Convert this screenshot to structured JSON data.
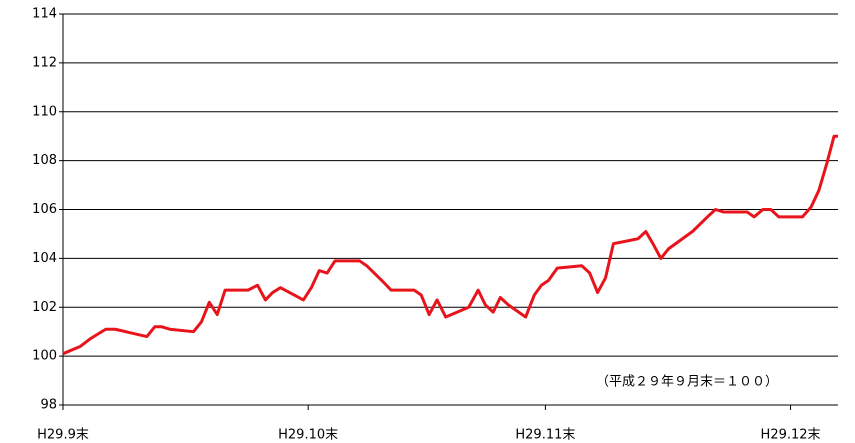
{
  "chart_data": {
    "type": "line",
    "annotation": "（平成２９年９月末＝１００）",
    "xlim": [
      0,
      98
    ],
    "xticks": [
      {
        "value": 0,
        "label": "H29.9末"
      },
      {
        "value": 31,
        "label": "H29.10末"
      },
      {
        "value": 61,
        "label": "H29.11末"
      },
      {
        "value": 92,
        "label": "H29.12末"
      }
    ],
    "ylim": [
      98,
      114
    ],
    "yticks": [
      98,
      100,
      102,
      104,
      106,
      108,
      110,
      112,
      114
    ],
    "grid": true,
    "series": [
      {
        "color": "#e8141b",
        "x": [
          0,
          2.2,
          3.4,
          4.4,
          5.4,
          6.6,
          10.6,
          11.6,
          12.5,
          13.5,
          16.5,
          17.5,
          18.5,
          19.5,
          20.5,
          23.4,
          24.6,
          25.6,
          26.5,
          27.5,
          30.4,
          31.4,
          32.4,
          33.4,
          34.4,
          37.5,
          38.4,
          40.3,
          41.5,
          44.4,
          45.3,
          46.3,
          47.3,
          48.4,
          51.3,
          52.5,
          53.4,
          54.4,
          55.3,
          56.3,
          58.5,
          59.6,
          60.5,
          61.4,
          62.5,
          65.6,
          66.6,
          67.6,
          68.6,
          69.6,
          72.7,
          73.7,
          74.6,
          75.6,
          76.6,
          79.6,
          81.5,
          82.5,
          83.5,
          86.5,
          87.4,
          88.5,
          89.5,
          90.5,
          93.5,
          94.6,
          95.6,
          96.6,
          97.5,
          98
        ],
        "values": [
          100.1,
          100.4,
          100.7,
          100.9,
          101.1,
          101.1,
          100.8,
          101.2,
          101.2,
          101.1,
          101.0,
          101.4,
          102.2,
          101.7,
          102.7,
          102.7,
          102.9,
          102.3,
          102.6,
          102.8,
          102.3,
          102.8,
          103.5,
          103.4,
          103.9,
          103.9,
          103.7,
          103.1,
          102.7,
          102.7,
          102.5,
          101.7,
          102.3,
          101.6,
          102.0,
          102.7,
          102.1,
          101.8,
          102.4,
          102.1,
          101.6,
          102.5,
          102.9,
          103.1,
          103.6,
          103.7,
          103.4,
          102.6,
          103.2,
          104.6,
          104.8,
          105.1,
          104.6,
          104.0,
          104.4,
          105.1,
          105.7,
          106.0,
          105.9,
          105.9,
          105.7,
          106.0,
          106.0,
          105.7,
          105.7,
          106.1,
          106.8,
          107.9,
          109.0,
          109.0
        ]
      }
    ]
  }
}
